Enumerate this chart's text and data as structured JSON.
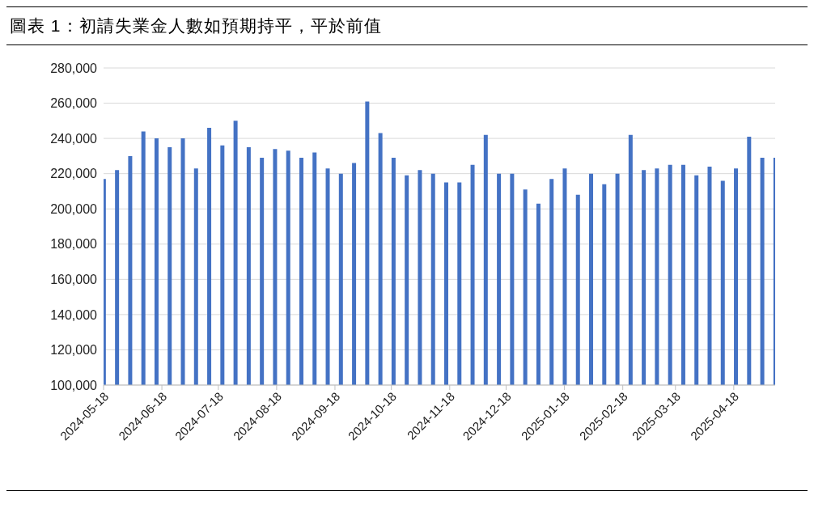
{
  "chart_data": {
    "type": "bar",
    "title": "圖表 1：初請失業金人數如預期持平，平於前值",
    "x": [
      "2024-05-18",
      "2024-05-25",
      "2024-06-01",
      "2024-06-08",
      "2024-06-15",
      "2024-06-22",
      "2024-06-29",
      "2024-07-06",
      "2024-07-13",
      "2024-07-20",
      "2024-07-27",
      "2024-08-03",
      "2024-08-10",
      "2024-08-17",
      "2024-08-24",
      "2024-08-31",
      "2024-09-07",
      "2024-09-14",
      "2024-09-21",
      "2024-09-28",
      "2024-10-05",
      "2024-10-12",
      "2024-10-19",
      "2024-10-26",
      "2024-11-02",
      "2024-11-09",
      "2024-11-16",
      "2024-11-23",
      "2024-11-30",
      "2024-12-07",
      "2024-12-14",
      "2024-12-21",
      "2024-12-28",
      "2025-01-04",
      "2025-01-11",
      "2025-01-18",
      "2025-01-25",
      "2025-02-01",
      "2025-02-08",
      "2025-02-15",
      "2025-02-22",
      "2025-03-01",
      "2025-03-08",
      "2025-03-15",
      "2025-03-22",
      "2025-03-29",
      "2025-04-05",
      "2025-04-12",
      "2025-04-19",
      "2025-04-26",
      "2025-05-03",
      "2025-05-10"
    ],
    "values": [
      217000,
      222000,
      230000,
      244000,
      240000,
      235000,
      240000,
      223000,
      246000,
      236000,
      250000,
      235000,
      229000,
      234000,
      233000,
      229000,
      232000,
      223000,
      220000,
      226000,
      261000,
      243000,
      229000,
      219000,
      222000,
      220000,
      215000,
      215000,
      225000,
      242000,
      220000,
      220000,
      211000,
      203000,
      217000,
      223000,
      208000,
      220000,
      214000,
      220000,
      242000,
      222000,
      223000,
      225000,
      225000,
      219000,
      224000,
      216000,
      223000,
      241000,
      229000,
      229000
    ],
    "color": "#4472c4",
    "xlim": [
      "2024-05-18",
      "2025-05-10"
    ],
    "xticks": [
      "2024-05-18",
      "2024-06-18",
      "2024-07-18",
      "2024-08-18",
      "2024-09-18",
      "2024-10-18",
      "2024-11-18",
      "2024-12-18",
      "2025-01-18",
      "2025-02-18",
      "2025-03-18",
      "2025-04-18"
    ],
    "ylim": [
      100000,
      280000
    ],
    "yticks": [
      {
        "value": 100000,
        "label": "100,000"
      },
      {
        "value": 120000,
        "label": "120,000"
      },
      {
        "value": 140000,
        "label": "140,000"
      },
      {
        "value": 160000,
        "label": "160,000"
      },
      {
        "value": 180000,
        "label": "180,000"
      },
      {
        "value": 200000,
        "label": "200,000"
      },
      {
        "value": 220000,
        "label": "220,000"
      },
      {
        "value": 240000,
        "label": "240,000"
      },
      {
        "value": 260000,
        "label": "260,000"
      },
      {
        "value": 280000,
        "label": "280,000"
      }
    ],
    "grid": "y",
    "legend": false
  }
}
